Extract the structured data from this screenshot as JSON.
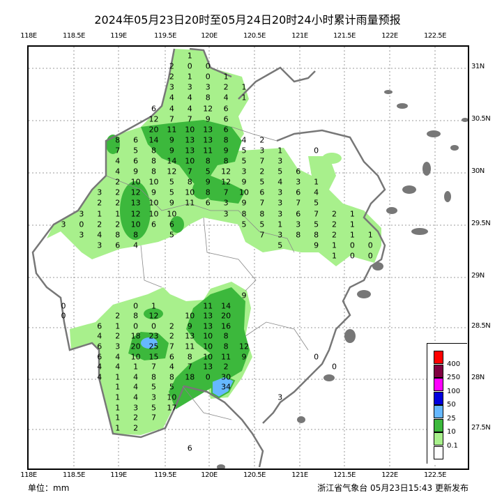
{
  "title": "2024年05月23日20时至05月24日20时24小时累计雨量预报",
  "lon_labels": [
    "118E",
    "118.5E",
    "119E",
    "119.5E",
    "120E",
    "120.5E",
    "121E",
    "121.5E",
    "122E",
    "122.5E"
  ],
  "lat_labels": [
    "31N",
    "30.5N",
    "30N",
    "29.5N",
    "29N",
    "28.5N",
    "28N",
    "27.5N"
  ],
  "footer": {
    "unit": "单位：mm",
    "issuer": "浙江省气象台 05月23日15:43 更新发布"
  },
  "legend": {
    "levels": [
      {
        "color": "#ff0000",
        "label": ""
      },
      {
        "color": "#800040",
        "label": "400"
      },
      {
        "color": "#ff00ff",
        "label": "250"
      },
      {
        "color": "#0000dd",
        "label": "100"
      },
      {
        "color": "#66b8ff",
        "label": "50"
      },
      {
        "color": "#3cb83c",
        "label": "25"
      },
      {
        "color": "#a8f08c",
        "label": "10"
      },
      {
        "color": "#ffffff",
        "label": "0.1"
      }
    ]
  },
  "rainfall_north_rows": [
    [
      null,
      null,
      null,
      null,
      null,
      null,
      null,
      1,
      null,
      null,
      null,
      null,
      null,
      null,
      null,
      null,
      null,
      null
    ],
    [
      null,
      null,
      null,
      null,
      null,
      null,
      2,
      0,
      0,
      null,
      null,
      null,
      null,
      null,
      null,
      null,
      null,
      null
    ],
    [
      null,
      null,
      null,
      null,
      null,
      null,
      2,
      1,
      0,
      1,
      null,
      null,
      null,
      null,
      null,
      null,
      null,
      null
    ],
    [
      null,
      null,
      null,
      null,
      null,
      null,
      3,
      3,
      3,
      2,
      1,
      null,
      null,
      null,
      null,
      null,
      null,
      null
    ],
    [
      null,
      null,
      null,
      null,
      null,
      null,
      4,
      4,
      8,
      4,
      1,
      null,
      null,
      null,
      null,
      null,
      null,
      null
    ],
    [
      null,
      null,
      null,
      null,
      null,
      6,
      4,
      4,
      12,
      6,
      null,
      null,
      null,
      null,
      null,
      null,
      null,
      null
    ],
    [
      null,
      null,
      null,
      null,
      null,
      12,
      7,
      7,
      9,
      6,
      null,
      null,
      null,
      null,
      null,
      null,
      null,
      null
    ],
    [
      null,
      null,
      null,
      null,
      null,
      20,
      11,
      10,
      13,
      6,
      null,
      null,
      null,
      null,
      null,
      null,
      null,
      null
    ],
    [
      null,
      null,
      null,
      8,
      6,
      14,
      9,
      13,
      13,
      8,
      4,
      2,
      null,
      null,
      null,
      null,
      null,
      null
    ],
    [
      null,
      null,
      null,
      7,
      5,
      8,
      9,
      13,
      11,
      9,
      5,
      3,
      1,
      null,
      0,
      null,
      null,
      null
    ],
    [
      null,
      null,
      null,
      4,
      6,
      8,
      14,
      10,
      8,
      8,
      5,
      7,
      3,
      null,
      null,
      null,
      null,
      null
    ],
    [
      null,
      null,
      null,
      4,
      9,
      8,
      12,
      7,
      5,
      12,
      3,
      2,
      5,
      6,
      null,
      null,
      null,
      null
    ],
    [
      null,
      null,
      null,
      2,
      10,
      10,
      5,
      8,
      9,
      12,
      9,
      5,
      4,
      3,
      1,
      null,
      null,
      null
    ],
    [
      null,
      null,
      3,
      2,
      12,
      9,
      5,
      10,
      8,
      7,
      10,
      6,
      3,
      6,
      4,
      null,
      null,
      null
    ],
    [
      null,
      null,
      2,
      2,
      13,
      10,
      9,
      11,
      6,
      3,
      9,
      7,
      3,
      7,
      5,
      null,
      null,
      null
    ],
    [
      null,
      3,
      1,
      1,
      12,
      10,
      10,
      null,
      null,
      3,
      8,
      8,
      3,
      6,
      7,
      2,
      1,
      null
    ],
    [
      3,
      0,
      2,
      2,
      10,
      6,
      6,
      null,
      null,
      null,
      5,
      5,
      1,
      3,
      5,
      2,
      1,
      null
    ],
    [
      null,
      3,
      4,
      8,
      8,
      null,
      5,
      null,
      null,
      null,
      null,
      7,
      3,
      8,
      8,
      2,
      1,
      1
    ],
    [
      null,
      null,
      3,
      6,
      4,
      null,
      null,
      null,
      null,
      null,
      null,
      null,
      5,
      null,
      9,
      1,
      0,
      0
    ],
    [
      null,
      null,
      null,
      null,
      null,
      null,
      null,
      null,
      null,
      null,
      null,
      null,
      null,
      null,
      null,
      1,
      0,
      0
    ]
  ],
  "rainfall_south_rows": [
    [
      null,
      null,
      null,
      null,
      null,
      null,
      null,
      null,
      null,
      null,
      9,
      null,
      null,
      null,
      null,
      null,
      null,
      null
    ],
    [
      0,
      null,
      null,
      null,
      0,
      1,
      null,
      null,
      11,
      14,
      null,
      null,
      null,
      null,
      null,
      null,
      null,
      null
    ],
    [
      0,
      null,
      null,
      2,
      8,
      12,
      null,
      10,
      13,
      20,
      null,
      null,
      null,
      null,
      null,
      null,
      null,
      null
    ],
    [
      null,
      null,
      6,
      1,
      0,
      0,
      2,
      9,
      13,
      16,
      null,
      null,
      null,
      null,
      null,
      null,
      null,
      null
    ],
    [
      null,
      null,
      4,
      2,
      18,
      23,
      2,
      13,
      10,
      8,
      null,
      null,
      null,
      null,
      null,
      null,
      null,
      null
    ],
    [
      null,
      null,
      6,
      3,
      20,
      25,
      7,
      11,
      10,
      8,
      12,
      null,
      null,
      null,
      null,
      null,
      null,
      null
    ],
    [
      null,
      null,
      6,
      4,
      10,
      15,
      6,
      8,
      10,
      11,
      9,
      null,
      null,
      null,
      0,
      null,
      null,
      null
    ],
    [
      null,
      null,
      4,
      4,
      1,
      7,
      4,
      7,
      13,
      2,
      null,
      null,
      null,
      null,
      null,
      0,
      null,
      null
    ],
    [
      null,
      null,
      4,
      1,
      4,
      8,
      8,
      18,
      0,
      30,
      null,
      null,
      null,
      null,
      null,
      null,
      null,
      null
    ],
    [
      null,
      null,
      null,
      1,
      4,
      5,
      5,
      null,
      null,
      34,
      null,
      null,
      null,
      null,
      null,
      null,
      null,
      null
    ],
    [
      null,
      null,
      null,
      1,
      4,
      3,
      10,
      null,
      null,
      null,
      null,
      null,
      3,
      null,
      null,
      null,
      null,
      null
    ],
    [
      null,
      null,
      null,
      1,
      3,
      5,
      17,
      null,
      null,
      null,
      null,
      null,
      null,
      null,
      null,
      null,
      null,
      null
    ],
    [
      null,
      null,
      null,
      1,
      2,
      7,
      null,
      null,
      null,
      null,
      null,
      null,
      null,
      null,
      null,
      null,
      null,
      null
    ],
    [
      null,
      null,
      null,
      1,
      2,
      null,
      null,
      null,
      null,
      null,
      null,
      null,
      null,
      null,
      null,
      null,
      null,
      null
    ],
    [
      null,
      null,
      null,
      null,
      null,
      null,
      null,
      null,
      null,
      null,
      null,
      null,
      null,
      null,
      null,
      null,
      null,
      null
    ],
    [
      null,
      null,
      null,
      null,
      null,
      null,
      null,
      6,
      null,
      null,
      null,
      null,
      null,
      null,
      null,
      null,
      null,
      null
    ]
  ]
}
